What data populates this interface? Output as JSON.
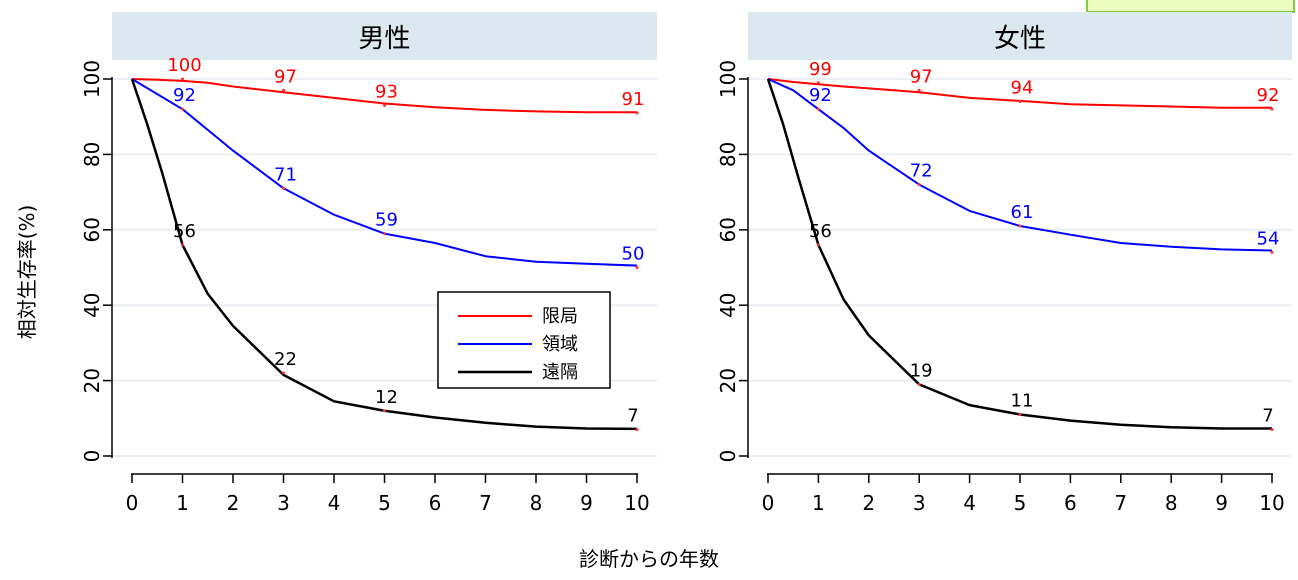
{
  "colors": {
    "local": "#ff0000",
    "regional": "#0000ff",
    "distant": "#000000",
    "strip": "#dbe8f0",
    "grid": "#e8eef2",
    "note": "#ecfcc0",
    "note_border": "#7fcf44"
  },
  "axes": {
    "xlabel": "診断からの年数",
    "ylabel": "相対生存率(%)"
  },
  "legend": {
    "position": "inside-lower-right-of-left-panel",
    "items": [
      "限局",
      "領域",
      "遠隔"
    ]
  },
  "chart_data": [
    {
      "type": "line",
      "title": "男性",
      "xlim": [
        0,
        10
      ],
      "ylim": [
        0,
        100
      ],
      "xticks": [
        0,
        1,
        2,
        3,
        4,
        5,
        6,
        7,
        8,
        9,
        10
      ],
      "yticks": [
        0,
        20,
        40,
        60,
        80,
        100
      ],
      "grid": true,
      "series": [
        {
          "name": "限局",
          "color": "#ff0000",
          "x": [
            0,
            0.5,
            1,
            1.5,
            2,
            3,
            4,
            5,
            6,
            7,
            8,
            9,
            10
          ],
          "y": [
            100,
            99.8,
            99.5,
            99,
            98,
            96.5,
            95,
            93.5,
            92.5,
            91.8,
            91.4,
            91.2,
            91.2
          ],
          "labels": [
            {
              "x": 1,
              "y": 100,
              "text": "100"
            },
            {
              "x": 3,
              "y": 97,
              "text": "97"
            },
            {
              "x": 5,
              "y": 93,
              "text": "93"
            },
            {
              "x": 10,
              "y": 91,
              "text": "91"
            }
          ]
        },
        {
          "name": "領域",
          "color": "#0000ff",
          "x": [
            0,
            0.5,
            1,
            1.5,
            2,
            3,
            4,
            5,
            6,
            7,
            8,
            9,
            10
          ],
          "y": [
            100,
            96,
            92,
            86.5,
            81,
            71,
            64,
            59,
            56.5,
            53,
            51.5,
            51,
            50.5
          ],
          "labels": [
            {
              "x": 1,
              "y": 92,
              "text": "92"
            },
            {
              "x": 3,
              "y": 71,
              "text": "71"
            },
            {
              "x": 5,
              "y": 59,
              "text": "59"
            },
            {
              "x": 10,
              "y": 50,
              "text": "50"
            }
          ]
        },
        {
          "name": "遠隔",
          "color": "#000000",
          "x": [
            0,
            0.3,
            0.6,
            1,
            1.5,
            2,
            3,
            4,
            5,
            6,
            7,
            8,
            9,
            10
          ],
          "y": [
            100,
            88,
            75,
            56,
            43,
            34.5,
            21.5,
            14.5,
            12,
            10.2,
            8.8,
            7.8,
            7.3,
            7.2
          ],
          "labels": [
            {
              "x": 1,
              "y": 56,
              "text": "56"
            },
            {
              "x": 3,
              "y": 22,
              "text": "22"
            },
            {
              "x": 5,
              "y": 12,
              "text": "12"
            },
            {
              "x": 10,
              "y": 7,
              "text": "7"
            }
          ]
        }
      ]
    },
    {
      "type": "line",
      "title": "女性",
      "xlim": [
        0,
        10
      ],
      "ylim": [
        0,
        100
      ],
      "xticks": [
        0,
        1,
        2,
        3,
        4,
        5,
        6,
        7,
        8,
        9,
        10
      ],
      "yticks": [
        0,
        20,
        40,
        60,
        80,
        100
      ],
      "grid": true,
      "series": [
        {
          "name": "限局",
          "color": "#ff0000",
          "x": [
            0,
            0.5,
            1,
            1.5,
            2,
            3,
            4,
            5,
            6,
            7,
            8,
            9,
            10
          ],
          "y": [
            100,
            99.2,
            98.6,
            98,
            97.5,
            96.5,
            95,
            94.2,
            93.3,
            93,
            92.7,
            92.4,
            92.4
          ],
          "labels": [
            {
              "x": 1,
              "y": 99,
              "text": "99"
            },
            {
              "x": 3,
              "y": 97,
              "text": "97"
            },
            {
              "x": 5,
              "y": 94,
              "text": "94"
            },
            {
              "x": 10,
              "y": 92,
              "text": "92"
            }
          ]
        },
        {
          "name": "領域",
          "color": "#0000ff",
          "x": [
            0,
            0.5,
            1,
            1.5,
            2,
            3,
            4,
            5,
            6,
            7,
            8,
            9,
            10
          ],
          "y": [
            100,
            97,
            92,
            87,
            81,
            72,
            65,
            61,
            58.7,
            56.5,
            55.5,
            54.8,
            54.5
          ],
          "labels": [
            {
              "x": 1,
              "y": 92,
              "text": "92"
            },
            {
              "x": 3,
              "y": 72,
              "text": "72"
            },
            {
              "x": 5,
              "y": 61,
              "text": "61"
            },
            {
              "x": 10,
              "y": 54,
              "text": "54"
            }
          ]
        },
        {
          "name": "遠隔",
          "color": "#000000",
          "x": [
            0,
            0.3,
            0.6,
            1,
            1.5,
            2,
            3,
            4,
            5,
            6,
            7,
            8,
            9,
            10
          ],
          "y": [
            100,
            88,
            74,
            56,
            41.5,
            32,
            19,
            13.5,
            11,
            9.4,
            8.3,
            7.6,
            7.3,
            7.3
          ],
          "labels": [
            {
              "x": 1,
              "y": 56,
              "text": "56"
            },
            {
              "x": 3,
              "y": 19,
              "text": "19"
            },
            {
              "x": 5,
              "y": 11,
              "text": "11"
            },
            {
              "x": 10,
              "y": 7,
              "text": "7"
            }
          ]
        }
      ]
    }
  ]
}
